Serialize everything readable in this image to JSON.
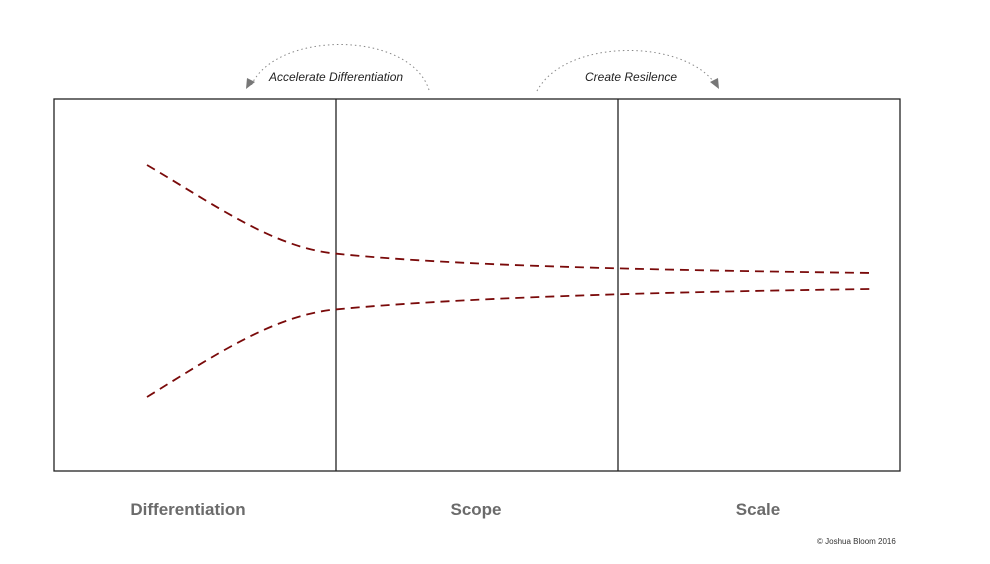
{
  "arcs": {
    "accelerate_label": "Accelerate Differentiation",
    "resilience_label": "Create Resilence"
  },
  "phases": [
    "Differentiation",
    "Scope",
    "Scale"
  ],
  "copyright": "© Joshua Bloom 2016",
  "colors": {
    "curve": "#7a0a0a",
    "frame": "#222222",
    "arc": "#888888",
    "phase_text": "#6b6b6b"
  }
}
